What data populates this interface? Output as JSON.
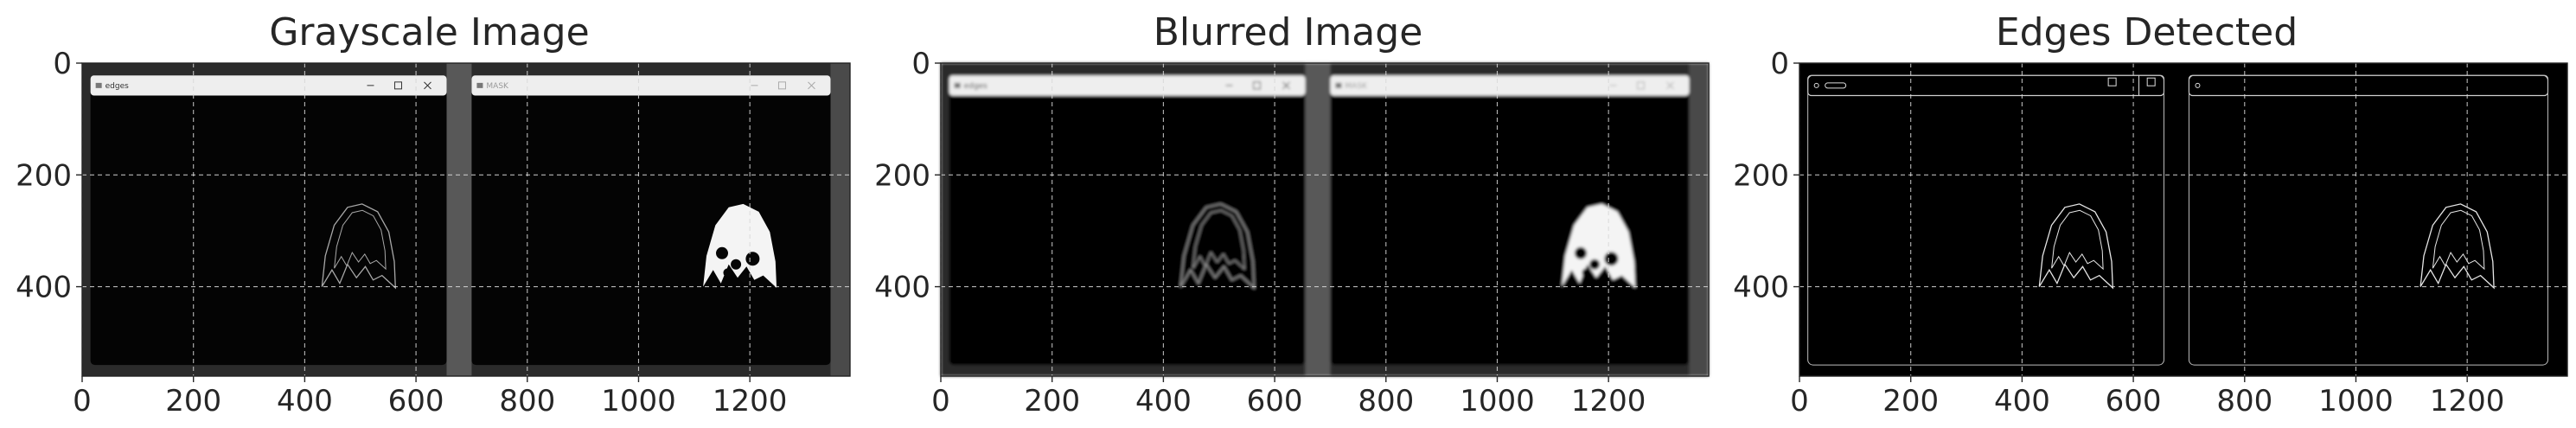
{
  "chart_data": [
    {
      "type": "image",
      "title": "Grayscale Image",
      "variant": "grayscale",
      "xlim": [
        0,
        1380
      ],
      "ylim": [
        560,
        0
      ],
      "xticks": [
        0,
        200,
        400,
        600,
        800,
        1000,
        1200
      ],
      "yticks": [
        0,
        200,
        400
      ],
      "grid": true,
      "window_titles": [
        "edges",
        "MASK"
      ]
    },
    {
      "type": "image",
      "title": "Blurred Image",
      "variant": "blurred",
      "xlim": [
        0,
        1380
      ],
      "ylim": [
        560,
        0
      ],
      "xticks": [
        0,
        200,
        400,
        600,
        800,
        1000,
        1200
      ],
      "yticks": [
        0,
        200,
        400
      ],
      "grid": true,
      "window_titles": [
        "edges",
        "MASK"
      ]
    },
    {
      "type": "image",
      "title": "Edges Detected",
      "variant": "edges",
      "xlim": [
        0,
        1380
      ],
      "ylim": [
        560,
        0
      ],
      "xticks": [
        0,
        200,
        400,
        600,
        800,
        1000,
        1200
      ],
      "yticks": [
        0,
        200,
        400
      ],
      "grid": true,
      "window_titles": []
    }
  ]
}
